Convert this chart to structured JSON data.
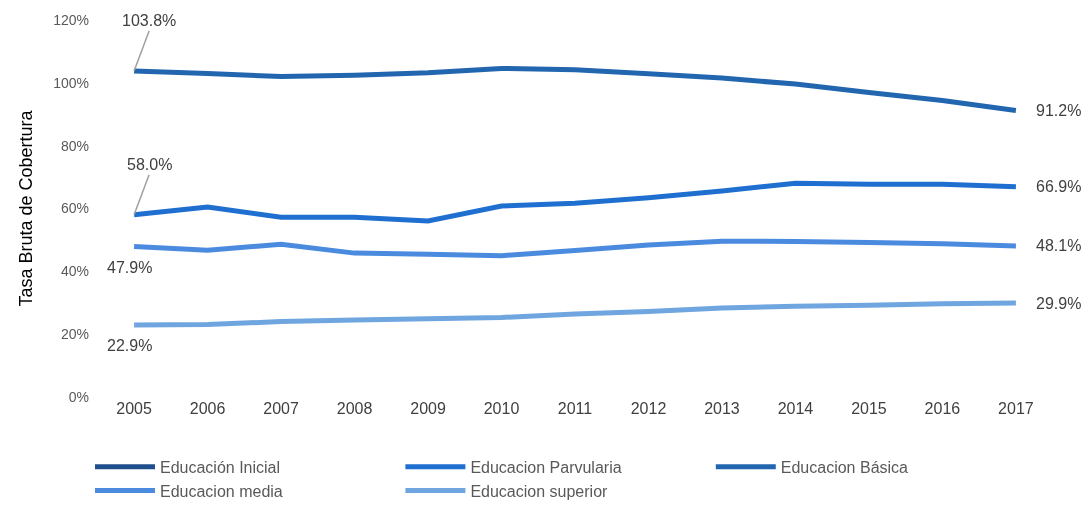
{
  "chart_data": {
    "type": "line",
    "ylabel": "Tasa Bruta de Cobertura",
    "categories": [
      "2005",
      "2006",
      "2007",
      "2008",
      "2009",
      "2010",
      "2011",
      "2012",
      "2013",
      "2014",
      "2015",
      "2016",
      "2017"
    ],
    "series": [
      {
        "name": "Educación Inicial",
        "color": "#1f4e8c",
        "values": [
          null,
          null,
          null,
          null,
          null,
          null,
          null,
          null,
          null,
          null,
          null,
          null,
          null
        ]
      },
      {
        "name": "Educacion Parvularia",
        "color": "#1f6fd0",
        "values": [
          58.0,
          60.5,
          57.2,
          57.2,
          56.0,
          60.8,
          61.7,
          63.4,
          65.6,
          68.0,
          67.7,
          67.7,
          66.9
        ],
        "value_labels": [
          "58.0%",
          null,
          null,
          null,
          null,
          null,
          null,
          null,
          null,
          null,
          null,
          null,
          "66.9%"
        ]
      },
      {
        "name": "Educacion Básica",
        "color": "#2266b0",
        "values": [
          103.8,
          103.0,
          102.0,
          102.4,
          103.2,
          104.6,
          104.2,
          102.9,
          101.5,
          99.6,
          96.9,
          94.4,
          91.2
        ],
        "value_labels": [
          "103.8%",
          null,
          null,
          null,
          null,
          null,
          null,
          null,
          null,
          null,
          null,
          null,
          "91.2%"
        ]
      },
      {
        "name": "Educacion media",
        "color": "#4a8be0",
        "values": [
          47.9,
          46.7,
          48.6,
          45.8,
          45.4,
          45.0,
          46.6,
          48.4,
          49.6,
          49.5,
          49.2,
          48.8,
          48.1
        ],
        "value_labels": [
          "47.9%",
          null,
          null,
          null,
          null,
          null,
          null,
          null,
          null,
          null,
          null,
          null,
          "48.1%"
        ]
      },
      {
        "name": "Educacion superior",
        "color": "#6fa6e0",
        "values": [
          22.9,
          23.1,
          24.0,
          24.5,
          24.9,
          25.3,
          26.4,
          27.2,
          28.3,
          28.9,
          29.2,
          29.7,
          29.9
        ],
        "value_labels": [
          "22.9%",
          null,
          null,
          null,
          null,
          null,
          null,
          null,
          null,
          null,
          null,
          null,
          "29.9%"
        ]
      }
    ],
    "ylim": [
      0,
      120
    ],
    "yticks": [
      {
        "value": 0,
        "label": "0%"
      },
      {
        "value": 20,
        "label": "20%"
      },
      {
        "value": 40,
        "label": "40%"
      },
      {
        "value": 60,
        "label": "60%"
      },
      {
        "value": 80,
        "label": "80%"
      },
      {
        "value": 100,
        "label": "100%"
      },
      {
        "value": 120,
        "label": "120%"
      }
    ],
    "grid": false,
    "legend": "bottom",
    "marker": "none",
    "line_style": "solid"
  }
}
